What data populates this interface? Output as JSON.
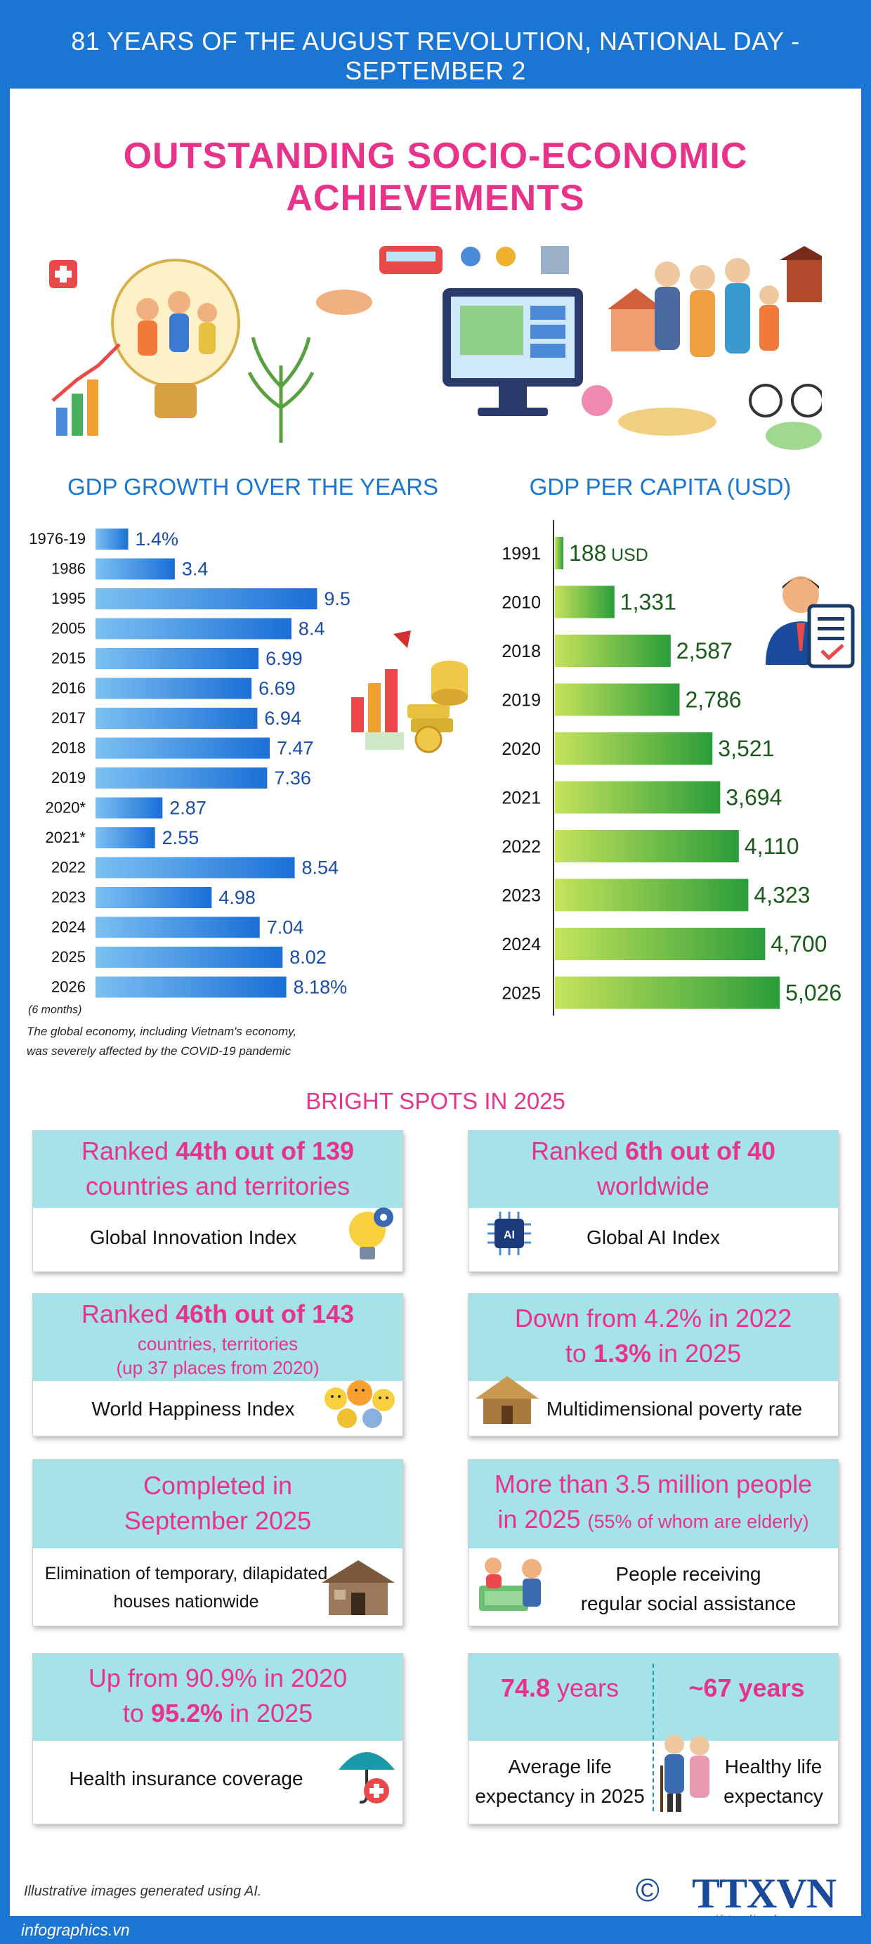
{
  "header": {
    "top_text": "81 YEARS OF THE AUGUST REVOLUTION, NATIONAL DAY - SEPTEMBER 2"
  },
  "title": "OUTSTANDING SOCIO-ECONOMIC ACHIEVEMENTS",
  "colors": {
    "primary_blue": "#1a76d2",
    "pink": "#e8338b",
    "panel_cyan": "#a6e3e9",
    "green_dark": "#2a9d3a",
    "green_light": "#c5e35b"
  },
  "chart_data": [
    {
      "type": "bar",
      "orientation": "horizontal",
      "title": "GDP GROWTH OVER THE YEARS",
      "categories": [
        "1976-19",
        "1986",
        "1995",
        "2005",
        "2015",
        "2016",
        "2017",
        "2018",
        "2019",
        "2020*",
        "2021*",
        "2022",
        "2023",
        "2024",
        "2025",
        "2026"
      ],
      "values": [
        1.4,
        3.4,
        9.5,
        8.4,
        6.99,
        6.69,
        6.94,
        7.47,
        7.36,
        2.87,
        2.55,
        8.54,
        4.98,
        7.04,
        8.02,
        8.18
      ],
      "value_labels": [
        "1.4%",
        "3.4",
        "9.5",
        "8.4",
        "6.99",
        "6.69",
        "6.94",
        "7.47",
        "7.36",
        "2.87",
        "2.55",
        "8.54",
        "4.98",
        "7.04",
        "8.02",
        "8.18%"
      ],
      "sub_label": "(6 months)",
      "note_lines": [
        "The global economy, including Vietnam's economy,",
        "was severely affected by the COVID-19 pandemic"
      ]
    },
    {
      "type": "bar",
      "orientation": "horizontal",
      "title": "GDP PER CAPITA (USD)",
      "categories": [
        "1991",
        "2010",
        "2018",
        "2019",
        "2020",
        "2021",
        "2022",
        "2023",
        "2024",
        "2025"
      ],
      "values": [
        188,
        1331,
        2587,
        2786,
        3521,
        3694,
        4110,
        4323,
        4700,
        5026
      ],
      "value_labels": [
        "188",
        "1,331",
        "2,587",
        "2,786",
        "3,521",
        "3,694",
        "4,110",
        "4,323",
        "4,700",
        "5,026"
      ],
      "unit_label": "USD"
    }
  ],
  "bright_spots": {
    "title": "BRIGHT SPOTS IN 2025",
    "innovation": {
      "pre": "Ranked ",
      "bold": "44th out of 139",
      "line2": "countries and territories",
      "label": "Global Innovation Index"
    },
    "ai": {
      "pre": "Ranked ",
      "bold": "6th out of 40",
      "line2": "worldwide",
      "label": "Global AI Index",
      "chip_text": "AI"
    },
    "happiness": {
      "pre": "Ranked ",
      "bold": "46th out of 143",
      "line2": "countries, territories",
      "line3": "(up 37 places from 2020)",
      "label": "World Happiness Index"
    },
    "poverty": {
      "line1": "Down from 4.2% in 2022",
      "pre2": "to ",
      "bold": "1.3%",
      "post2": "  in 2025",
      "label": "Multidimensional poverty rate"
    },
    "housing": {
      "line1": "Completed in",
      "line2": "September 2025",
      "label1": "Elimination of temporary, dilapidated",
      "label2": "houses nationwide"
    },
    "assistance": {
      "line1": "More than 3.5 million  people",
      "line2a": "in 2025 ",
      "line2b": "(55% of whom are elderly)",
      "label1": "People receiving",
      "label2": "regular social assistance"
    },
    "insurance": {
      "line1": "Up from 90.9% in 2020",
      "pre2": "to ",
      "bold": "95.2%",
      "post2": " in 2025",
      "label": "Health insurance coverage"
    },
    "life": {
      "val1_bold": "74.8",
      "val1_rest": " years",
      "val2": "~67 years",
      "label1a": "Average life",
      "label1b": "expectancy in 2025",
      "label2a": "Healthy life",
      "label2b": "expectancy"
    }
  },
  "footer": {
    "note": "Illustrative images generated using AI.",
    "site": "infographics.vn",
    "copyright": "©",
    "logo": "TTXVN",
    "logo_sub": "Vietnam News Agency"
  }
}
